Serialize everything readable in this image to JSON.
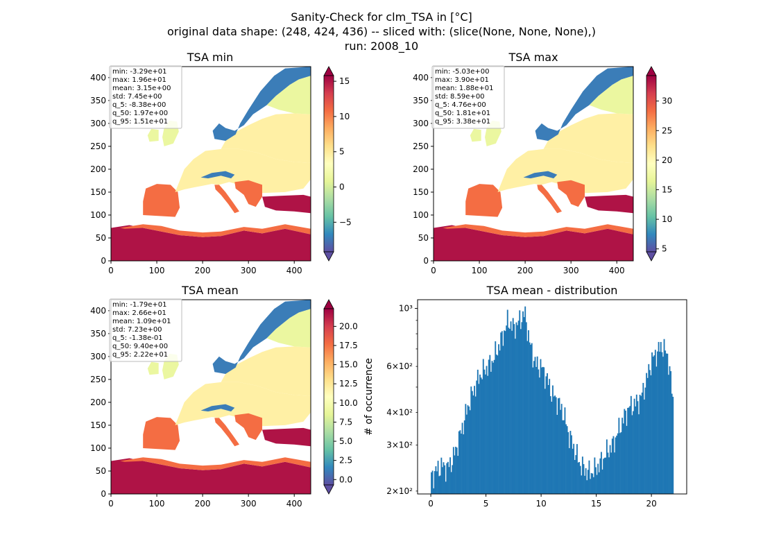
{
  "figure": {
    "title_lines": [
      "Sanity-Check for clm_TSA in [°C]",
      "original data shape: (248, 424, 436) -- sliced with: (slice(None, None, None),)",
      "run: 2008_10"
    ]
  },
  "chart_data": [
    {
      "type": "heatmap",
      "title": "TSA min",
      "colormap": "Spectral_r",
      "colorbar_extend": "both",
      "xlim": [
        0,
        436
      ],
      "ylim": [
        0,
        424
      ],
      "xticks": [
        "0",
        "100",
        "200",
        "300",
        "400"
      ],
      "yticks": [
        "0",
        "50",
        "100",
        "150",
        "200",
        "250",
        "300",
        "350",
        "400"
      ],
      "vmin": -9.2,
      "vmax": 15.8,
      "colorbar_ticks": [
        -5,
        0,
        5,
        10,
        15
      ],
      "colorbar_tick_labels": [
        "−5",
        "0",
        "5",
        "10",
        "15"
      ],
      "stats": [
        "min: -3.29e+01",
        "max: 1.96e+01",
        "mean: 3.15e+00",
        "std: 7.45e+00",
        "q_5: -8.38e+00",
        "q_50: 1.97e+00",
        "q_95: 1.51e+01"
      ]
    },
    {
      "type": "heatmap",
      "title": "TSA max",
      "colormap": "Spectral_r",
      "colorbar_extend": "both",
      "xlim": [
        0,
        436
      ],
      "ylim": [
        0,
        424
      ],
      "xticks": [
        "0",
        "100",
        "200",
        "300",
        "400"
      ],
      "yticks": [
        "0",
        "50",
        "100",
        "150",
        "200",
        "250",
        "300",
        "350",
        "400"
      ],
      "vmin": 4.5,
      "vmax": 34.3,
      "colorbar_ticks": [
        5,
        10,
        15,
        20,
        25,
        30
      ],
      "colorbar_tick_labels": [
        "5",
        "10",
        "15",
        "20",
        "25",
        "30"
      ],
      "stats": [
        "min: -5.03e+00",
        "max: 3.90e+01",
        "mean: 1.88e+01",
        "std: 8.59e+00",
        "q_5: 4.76e+00",
        "q_50: 1.81e+01",
        "q_95: 3.38e+01"
      ]
    },
    {
      "type": "heatmap",
      "title": "TSA mean",
      "colormap": "Spectral_r",
      "colorbar_extend": "both",
      "xlim": [
        0,
        436
      ],
      "ylim": [
        0,
        424
      ],
      "xticks": [
        "0",
        "100",
        "200",
        "300",
        "400"
      ],
      "yticks": [
        "0",
        "50",
        "100",
        "150",
        "200",
        "250",
        "300",
        "350",
        "400"
      ],
      "vmin": -0.7,
      "vmax": 22.3,
      "colorbar_ticks": [
        0,
        2.5,
        5,
        7.5,
        10,
        12.5,
        15,
        17.5,
        20
      ],
      "colorbar_tick_labels": [
        "0.0",
        "2.5",
        "5.0",
        "7.5",
        "10.0",
        "12.5",
        "15.0",
        "17.5",
        "20.0"
      ],
      "stats": [
        "min: -1.79e+01",
        "max: 2.66e+01",
        "mean: 1.09e+01",
        "std: 7.23e+00",
        "q_5: -1.38e-01",
        "q_50: 9.40e+00",
        "q_95: 2.22e+01"
      ]
    },
    {
      "type": "bar",
      "title": "TSA mean - distribution",
      "ylabel": "# of occurrence",
      "yscale": "log",
      "xlim": [
        -1.2,
        23.2
      ],
      "ylim": [
        195,
        1080
      ],
      "bar_color": "#1f77b4",
      "bin_width": 0.1,
      "xticks": [
        0,
        5,
        10,
        15,
        20
      ],
      "xtick_labels": [
        "0",
        "5",
        "10",
        "15",
        "20"
      ],
      "yticks_major": [
        1000
      ],
      "ytick_major_labels": [
        "10³"
      ],
      "yticks_minor": [
        200,
        300,
        400,
        600
      ],
      "ytick_minor_labels": [
        "2×10²",
        "3×10²",
        "4×10²",
        "6×10²"
      ],
      "profile": [
        [
          0.0,
          225
        ],
        [
          0.5,
          240
        ],
        [
          1.0,
          250
        ],
        [
          1.5,
          245
        ],
        [
          2.0,
          265
        ],
        [
          2.5,
          310
        ],
        [
          3.0,
          370
        ],
        [
          3.5,
          440
        ],
        [
          4.0,
          500
        ],
        [
          4.5,
          560
        ],
        [
          5.0,
          590
        ],
        [
          5.5,
          620
        ],
        [
          6.0,
          690
        ],
        [
          6.5,
          780
        ],
        [
          7.0,
          900
        ],
        [
          7.5,
          840
        ],
        [
          8.0,
          890
        ],
        [
          8.5,
          960
        ],
        [
          9.0,
          720
        ],
        [
          9.5,
          610
        ],
        [
          10.0,
          600
        ],
        [
          10.5,
          540
        ],
        [
          11.0,
          470
        ],
        [
          11.5,
          440
        ],
        [
          12.0,
          400
        ],
        [
          12.5,
          330
        ],
        [
          13.0,
          290
        ],
        [
          13.5,
          255
        ],
        [
          14.0,
          240
        ],
        [
          14.5,
          235
        ],
        [
          15.0,
          245
        ],
        [
          15.5,
          260
        ],
        [
          16.0,
          285
        ],
        [
          16.5,
          300
        ],
        [
          17.0,
          340
        ],
        [
          17.5,
          380
        ],
        [
          18.0,
          420
        ],
        [
          18.5,
          430
        ],
        [
          19.0,
          450
        ],
        [
          19.5,
          520
        ],
        [
          20.0,
          630
        ],
        [
          20.5,
          680
        ],
        [
          21.0,
          720
        ],
        [
          21.5,
          650
        ],
        [
          22.0,
          420
        ]
      ]
    }
  ]
}
